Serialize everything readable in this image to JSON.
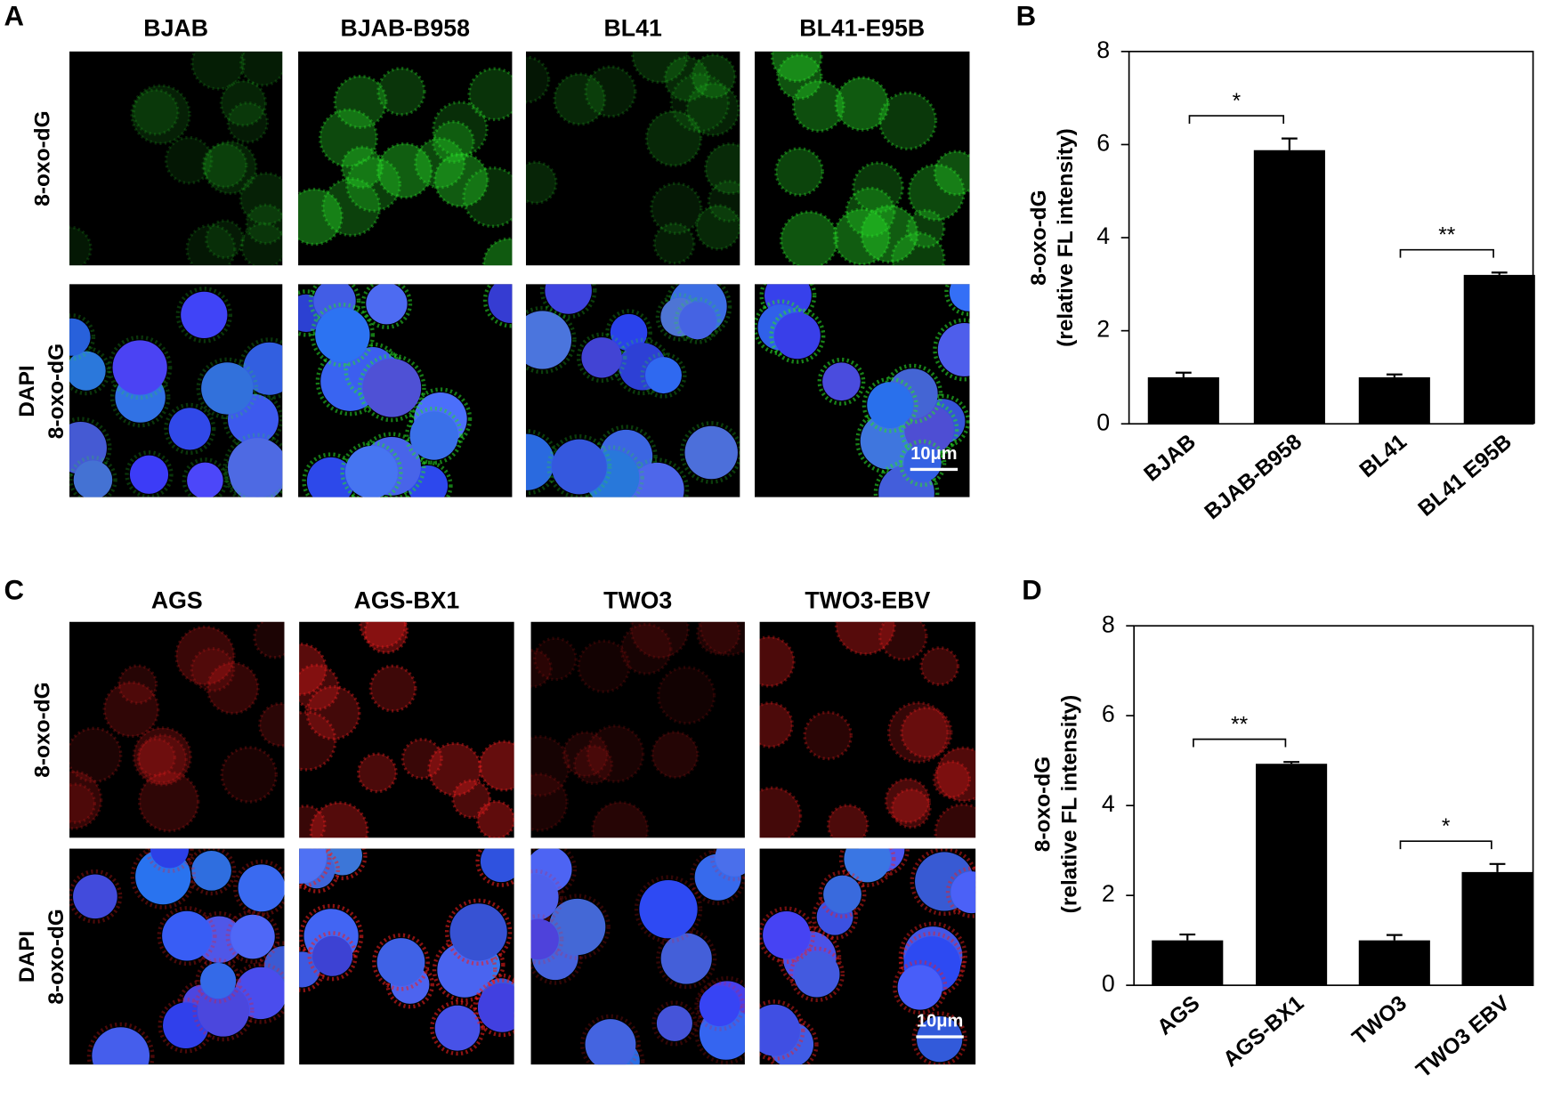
{
  "panels": [
    {
      "letter": "A",
      "columns": [
        "BJAB",
        "BJAB-B958",
        "BL41",
        "BL41-E95B"
      ],
      "rows": [
        [
          "8-oxo-dG"
        ],
        [
          "DAPI",
          "8-oxo-dG"
        ]
      ],
      "scale_bar": "10μm"
    },
    {
      "letter": "C",
      "columns": [
        "AGS",
        "AGS-BX1",
        "TWO3",
        "TWO3-EBV"
      ],
      "rows": [
        [
          "8-oxo-dG"
        ],
        [
          "DAPI",
          "8-oxo-dG"
        ]
      ],
      "scale_bar": "10μm"
    }
  ],
  "chart_data": [
    {
      "type": "bar",
      "label": "B",
      "y_label": [
        "8-oxo-dG",
        "(relative FL intensity)"
      ],
      "categories": [
        "BJAB",
        "BJAB-B958",
        "BL41",
        "BL41 E95B"
      ],
      "values": [
        1.0,
        5.88,
        1.0,
        3.2
      ],
      "errors": [
        0.1,
        0.25,
        0.06,
        0.05
      ],
      "color": "#000000",
      "ylim": [
        0,
        8
      ],
      "yticks": [
        0,
        2,
        4,
        6,
        8
      ],
      "significance": [
        {
          "text": "*",
          "pair": [
            0,
            1
          ]
        },
        {
          "text": "**",
          "pair": [
            2,
            3
          ]
        }
      ]
    },
    {
      "type": "bar",
      "label": "D",
      "y_label": [
        "8-oxo-dG",
        "(relative FL intensity)"
      ],
      "categories": [
        "AGS",
        "AGS-BX1",
        "TWO3",
        "TWO3 EBV"
      ],
      "values": [
        1.0,
        4.93,
        1.0,
        2.52
      ],
      "errors": [
        0.13,
        0.04,
        0.12,
        0.18
      ],
      "color": "#000000",
      "ylim": [
        0,
        8
      ],
      "yticks": [
        0,
        2,
        4,
        6,
        8
      ],
      "significance": [
        {
          "text": "**",
          "pair": [
            0,
            1
          ]
        },
        {
          "text": "*",
          "pair": [
            2,
            3
          ]
        }
      ]
    }
  ]
}
